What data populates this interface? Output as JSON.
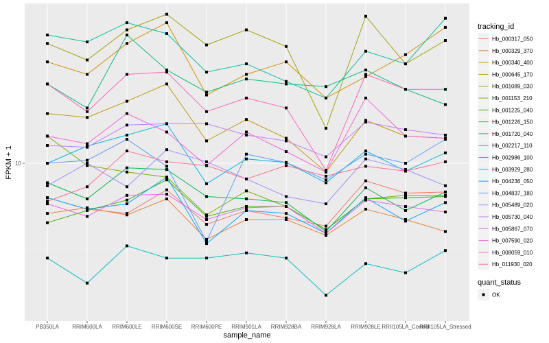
{
  "chart_data": {
    "type": "line",
    "title": "",
    "xlabel": "sample_name",
    "ylabel": "FPKM + 1",
    "y_scale": "log10",
    "ylim": [
      1.3,
      75
    ],
    "y_ticks": [
      10
    ],
    "y_tick_labels": [
      "10"
    ],
    "grid": true,
    "legend_position": "right",
    "categories": [
      "PB350LA",
      "RRIM600LA",
      "RRIM600LE",
      "RRIM600SE",
      "RRIM600PE",
      "RRIM901LA",
      "RRIM928BA",
      "RRIM928LA",
      "RRIM928LE",
      "RRII105LA_Control",
      "RRII105LA_Stressed"
    ],
    "legend": {
      "color_title": "tracking_id",
      "shape_title": "quant_status",
      "shape_entries": [
        "OK"
      ]
    },
    "series": [
      {
        "name": "Hb_000317_050",
        "color": "#F8766D",
        "values": [
          6.3,
          5.4,
          5.1,
          7.0,
          4.4,
          5.3,
          4.8,
          4.3,
          7.9,
          6.7,
          6.8
        ]
      },
      {
        "name": "Hb_000329_370",
        "color": "#EA8331",
        "values": [
          5.1,
          5.5,
          5.0,
          6.2,
          3.6,
          4.7,
          4.7,
          3.8,
          5.4,
          4.7,
          4.0
        ]
      },
      {
        "name": "Hb_000340_400",
        "color": "#D89000",
        "values": [
          39,
          33,
          50,
          66,
          25,
          33,
          39,
          24,
          32,
          43,
          62
        ]
      },
      {
        "name": "Hb_000645_170",
        "color": "#C09B00",
        "values": [
          19.5,
          18.5,
          23,
          29,
          13.5,
          18,
          14,
          8.9,
          17.8,
          14.4,
          14.0
        ]
      },
      {
        "name": "Hb_001089_030",
        "color": "#A3A500",
        "values": [
          50,
          40,
          60,
          74,
          49,
          60,
          48,
          16,
          72,
          38,
          52
        ]
      },
      {
        "name": "Hb_001153_210",
        "color": "#7CAE00",
        "values": [
          14.4,
          9.7,
          8.9,
          8.3,
          5.0,
          6.9,
          5.6,
          4.1,
          6.2,
          6.5,
          6.5
        ]
      },
      {
        "name": "Hb_001225_040",
        "color": "#39B600",
        "values": [
          4.5,
          5.3,
          6.1,
          8.0,
          4.9,
          5.6,
          5.6,
          4.1,
          6.2,
          6.3,
          6.4
        ]
      },
      {
        "name": "Hb_001226_150",
        "color": "#00BB4E",
        "values": [
          7.7,
          6.2,
          9.4,
          9.2,
          6.4,
          6.2,
          5.9,
          4.0,
          7.2,
          5.3,
          6.8
        ]
      },
      {
        "name": "Hb_001720_040",
        "color": "#00BF7D",
        "values": [
          29,
          21,
          56,
          35,
          26,
          31,
          29,
          28,
          35,
          27,
          22
        ]
      },
      {
        "name": "Hb_002217_110",
        "color": "#00C1A3",
        "values": [
          56,
          51,
          66,
          57,
          34,
          38,
          30,
          24,
          45,
          38,
          70
        ]
      },
      {
        "name": "Hb_002986_100",
        "color": "#00BFC4",
        "values": [
          2.8,
          2.0,
          3.3,
          2.8,
          2.8,
          3.0,
          2.8,
          1.7,
          2.6,
          2.3,
          3.1
        ]
      },
      {
        "name": "Hb_003929_280",
        "color": "#00B8E7",
        "values": [
          10.0,
          12.6,
          14.6,
          17.0,
          7.6,
          10.6,
          10.1,
          7.7,
          11.8,
          9.0,
          11.5
        ]
      },
      {
        "name": "Hb_004236_050",
        "color": "#00A9FF",
        "values": [
          6.3,
          5.4,
          5.8,
          8.3,
          3.4,
          5.3,
          5.1,
          3.9,
          6.3,
          4.6,
          5.9
        ]
      },
      {
        "name": "Hb_004837_180",
        "color": "#619CFF",
        "values": [
          10.0,
          10.4,
          13.8,
          9.6,
          3.5,
          11.3,
          10.1,
          8.0,
          11.3,
          10.0,
          13.8
        ]
      },
      {
        "name": "Hb_005489_020",
        "color": "#9F8CFF",
        "values": [
          7.4,
          10.0,
          7.3,
          12.0,
          10.2,
          8.1,
          6.4,
          5.8,
          10.6,
          9.2,
          7.4
        ]
      },
      {
        "name": "Hb_005730_040",
        "color": "#C77CFF",
        "values": [
          12.7,
          12.4,
          16.7,
          17.0,
          17.0,
          14.6,
          13.5,
          10.9,
          17.4,
          15.7,
          14.6
        ]
      },
      {
        "name": "Hb_005867_070",
        "color": "#E76BF3",
        "values": [
          5.8,
          4.9,
          6.5,
          6.6,
          4.7,
          5.5,
          5.6,
          3.9,
          6.1,
          5.6,
          5.2
        ]
      },
      {
        "name": "Hb_007590_020",
        "color": "#FA62DB",
        "values": [
          14.4,
          13.0,
          19.5,
          15.2,
          9.7,
          15.2,
          11.7,
          8.9,
          24.0,
          14.4,
          14.0
        ]
      },
      {
        "name": "Hb_008059_010",
        "color": "#FF62BC",
        "values": [
          29,
          20,
          33,
          34,
          20,
          24,
          21,
          9.1,
          33,
          27,
          27
        ]
      },
      {
        "name": "Hb_011930_020",
        "color": "#FF6C91",
        "values": [
          6.0,
          7.3,
          11.8,
          10.2,
          9.7,
          8.1,
          9.7,
          8.4,
          9.6,
          9.0,
          10.2
        ]
      }
    ]
  }
}
